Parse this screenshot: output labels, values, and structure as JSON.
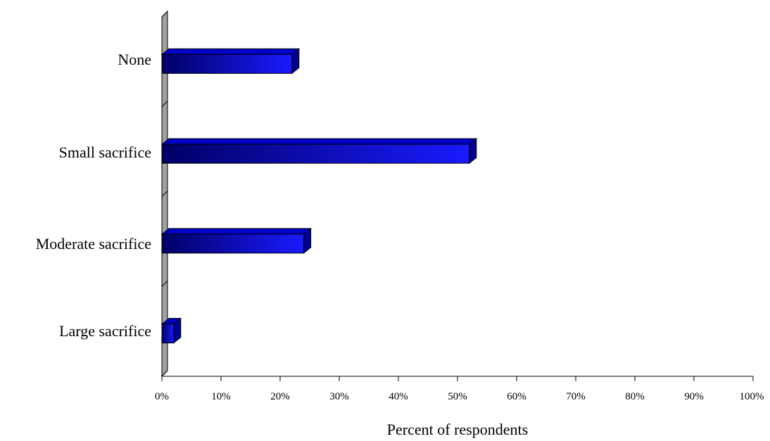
{
  "chart_data": {
    "type": "bar",
    "orientation": "horizontal",
    "categories": [
      "None",
      "Small sacrifice",
      "Moderate sacrifice",
      "Large sacrifice"
    ],
    "values": [
      22,
      52,
      24,
      2
    ],
    "xlabel": "Percent of respondents",
    "ylabel": "",
    "xlim": [
      0,
      100
    ],
    "x_ticks": [
      "0%",
      "10%",
      "20%",
      "30%",
      "40%",
      "50%",
      "60%",
      "70%",
      "80%",
      "90%",
      "100%"
    ],
    "grid": false,
    "legend": "none",
    "colors": {
      "bar_dark": "#000066",
      "bar_light": "#1a1aff",
      "bar_top": "#0000c8",
      "bar_side": "#000090",
      "wall": "#a0a0a0"
    }
  }
}
